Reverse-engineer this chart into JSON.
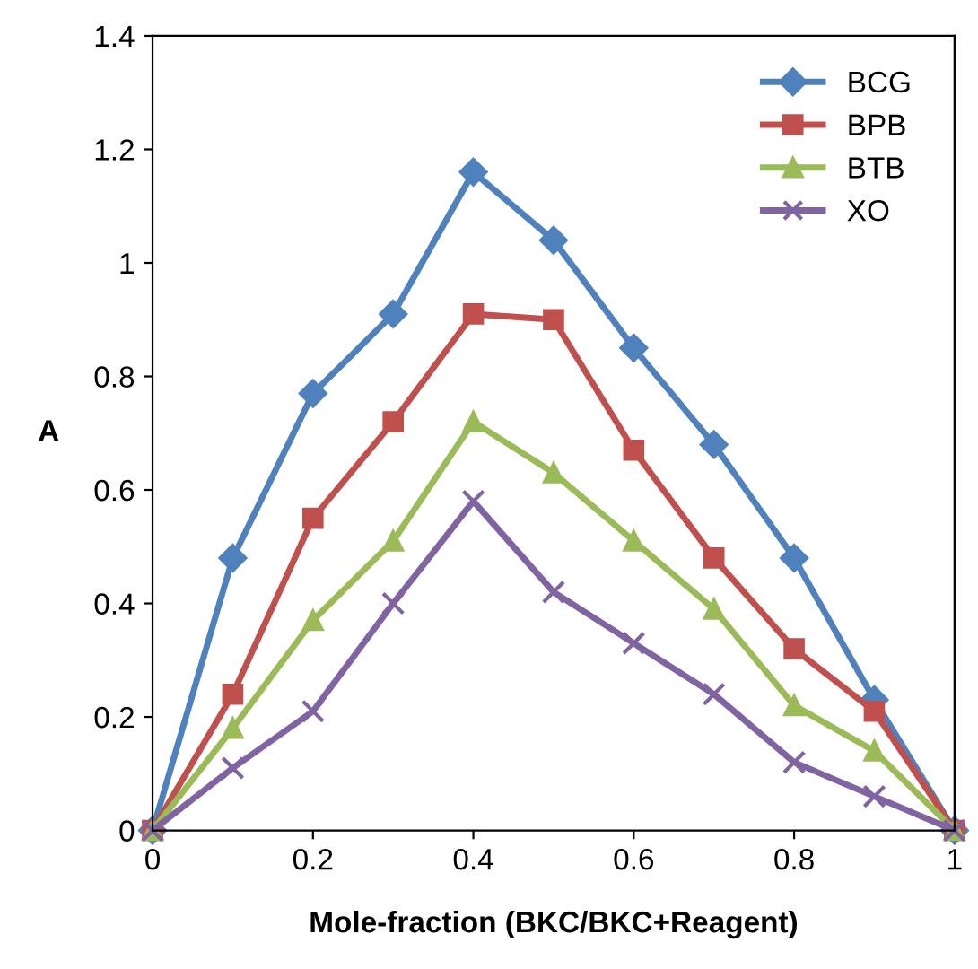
{
  "chart_data": {
    "type": "line",
    "xlabel": "Mole-fraction (BKC/BKC+Reagent)",
    "ylabel": "A",
    "x": [
      0,
      0.1,
      0.2,
      0.3,
      0.4,
      0.5,
      0.6,
      0.7,
      0.8,
      0.9,
      1
    ],
    "series": [
      {
        "name": "BCG",
        "color": "#4f81bd",
        "marker": "diamond",
        "values": [
          0,
          0.48,
          0.77,
          0.91,
          1.16,
          1.04,
          0.85,
          0.68,
          0.48,
          0.23,
          0
        ]
      },
      {
        "name": "BPB",
        "color": "#c0504d",
        "marker": "square",
        "values": [
          0,
          0.24,
          0.55,
          0.72,
          0.91,
          0.9,
          0.67,
          0.48,
          0.32,
          0.21,
          0
        ]
      },
      {
        "name": "BTB",
        "color": "#9bbb59",
        "marker": "triangle",
        "values": [
          0,
          0.18,
          0.37,
          0.51,
          0.72,
          0.63,
          0.51,
          0.39,
          0.22,
          0.14,
          0
        ]
      },
      {
        "name": "XO",
        "color": "#8064a2",
        "marker": "cross",
        "values": [
          0,
          0.11,
          0.21,
          0.4,
          0.58,
          0.42,
          0.33,
          0.24,
          0.12,
          0.06,
          0
        ]
      }
    ],
    "xlim": [
      0,
      1
    ],
    "xticks": [
      0,
      0.2,
      0.4,
      0.6,
      0.8,
      1
    ],
    "ylim": [
      0,
      1.4
    ],
    "yticks": [
      0,
      0.2,
      0.4,
      0.6,
      0.8,
      1,
      1.2,
      1.4
    ],
    "grid": false,
    "legend": "top right",
    "line_style": "solid"
  }
}
